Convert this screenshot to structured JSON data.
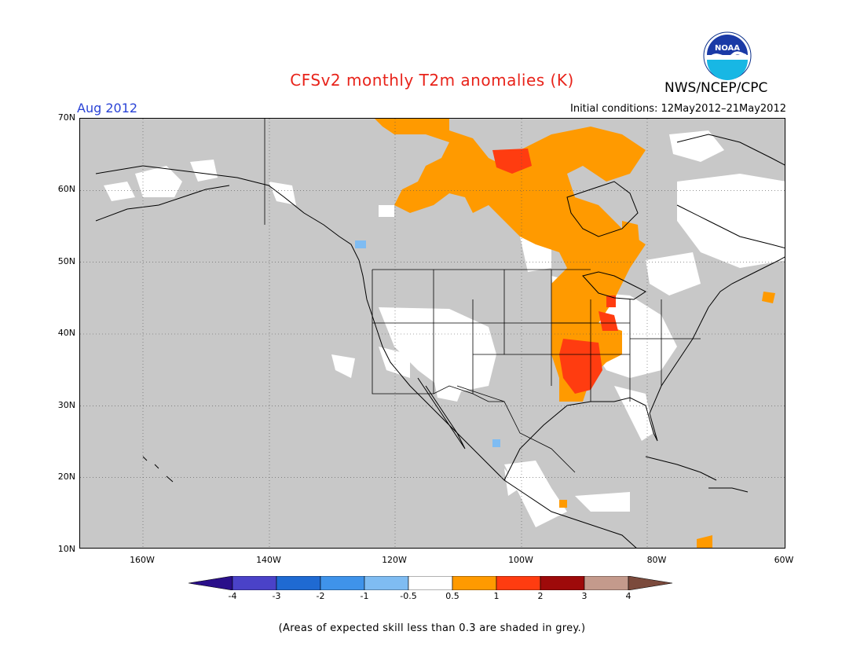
{
  "header": {
    "title": "CFSv2 monthly T2m anomalies (K)",
    "organization": "NWS/NCEP/CPC",
    "logo_text": "NOAA",
    "valid_month": "Aug 2012",
    "initial_conditions": "Initial conditions: 12May2012–21May2012"
  },
  "map": {
    "projection": "lat-lon",
    "lon_range": [
      -172,
      -60
    ],
    "lat_range": [
      10,
      70
    ],
    "lat_labels": [
      "70N",
      "60N",
      "50N",
      "40N",
      "30N",
      "20N",
      "10N"
    ],
    "lon_labels": [
      "160W",
      "140W",
      "120W",
      "100W",
      "80W",
      "60W"
    ],
    "colors": {
      "ocean_grey": "#c8c8c8",
      "land_white": "#ffffff",
      "outline": "#000000"
    }
  },
  "colorbar": {
    "tick_labels": [
      "-4",
      "-3",
      "-2",
      "-1",
      "-0.5",
      "0.5",
      "1",
      "2",
      "3",
      "4"
    ],
    "colors": [
      "#2a0f8a",
      "#4a42c8",
      "#1f6ad2",
      "#3f93ea",
      "#7fbcf2",
      "#ffffff",
      "#ff9a00",
      "#ff3c10",
      "#9e0a0a",
      "#c49a8c",
      "#7b4a3c"
    ]
  },
  "footnote": "(Areas of expected skill less than 0.3 are shaded in grey.)"
}
